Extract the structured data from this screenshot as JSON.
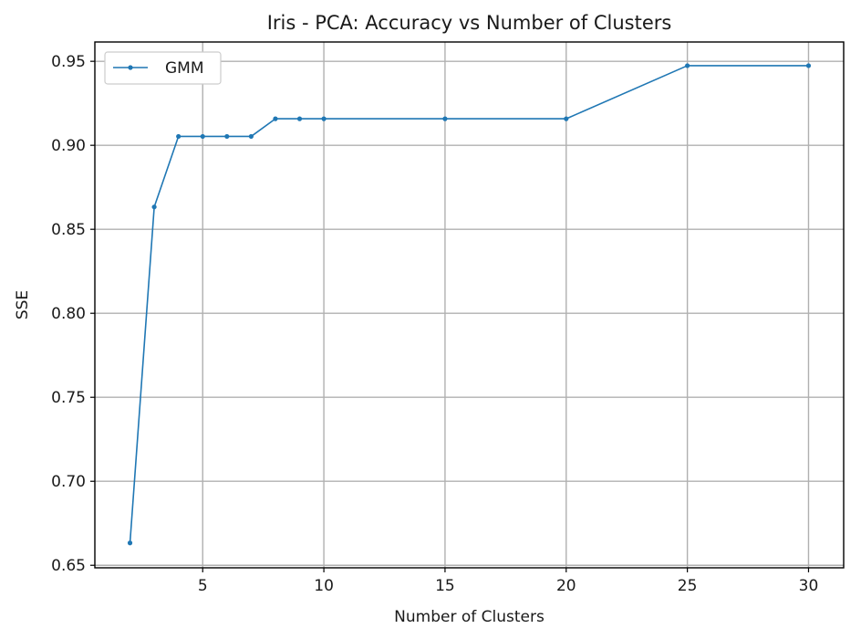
{
  "chart_data": {
    "type": "line",
    "title": "Iris - PCA: Accuracy vs Number of Clusters",
    "xlabel": "Number of Clusters",
    "ylabel": "SSE",
    "xlim": [
      0.55,
      31.45
    ],
    "ylim": [
      0.6485,
      0.9615
    ],
    "xticks": [
      5,
      10,
      15,
      20,
      25,
      30
    ],
    "yticks": [
      0.65,
      0.7,
      0.75,
      0.8,
      0.85,
      0.9,
      0.95
    ],
    "xtick_labels": [
      "5",
      "10",
      "15",
      "20",
      "25",
      "30"
    ],
    "ytick_labels": [
      "0.65",
      "0.70",
      "0.75",
      "0.80",
      "0.85",
      "0.90",
      "0.95"
    ],
    "grid": true,
    "legend_position": "top-left",
    "series": [
      {
        "name": "GMM",
        "color": "#1f77b4",
        "marker": "circle",
        "x": [
          2,
          3,
          4,
          5,
          6,
          7,
          8,
          9,
          10,
          15,
          20,
          25,
          30
        ],
        "y": [
          0.6633,
          0.8633,
          0.9053,
          0.9053,
          0.9053,
          0.9053,
          0.9158,
          0.9158,
          0.9158,
          0.9158,
          0.9158,
          0.9474,
          0.9474
        ]
      }
    ]
  }
}
